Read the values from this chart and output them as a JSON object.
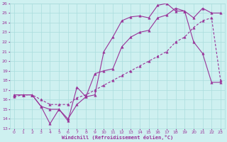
{
  "xlabel": "Windchill (Refroidissement éolien,°C)",
  "xlim": [
    -0.5,
    23.5
  ],
  "ylim": [
    13,
    26
  ],
  "xticks": [
    0,
    1,
    2,
    3,
    4,
    5,
    6,
    7,
    8,
    9,
    10,
    11,
    12,
    13,
    14,
    15,
    16,
    17,
    18,
    19,
    20,
    21,
    22,
    23
  ],
  "yticks": [
    13,
    14,
    15,
    16,
    17,
    18,
    19,
    20,
    21,
    22,
    23,
    24,
    25,
    26
  ],
  "bg_color": "#cef0f0",
  "grid_color": "#aadddd",
  "line_color": "#993399",
  "line1_x": [
    0,
    1,
    2,
    3,
    4,
    5,
    6,
    7,
    8,
    9,
    10,
    11,
    12,
    13,
    14,
    15,
    16,
    17,
    18,
    19,
    20,
    21,
    22,
    23
  ],
  "line1_y": [
    16.5,
    16.5,
    16.5,
    15.3,
    13.5,
    15.0,
    13.8,
    17.3,
    16.3,
    16.5,
    21.0,
    22.5,
    24.2,
    24.6,
    24.7,
    24.5,
    25.8,
    26.0,
    25.2,
    25.2,
    22.0,
    20.8,
    17.8,
    17.8
  ],
  "line2_x": [
    0,
    1,
    2,
    3,
    4,
    5,
    6,
    7,
    8,
    9,
    10,
    11,
    12,
    13,
    14,
    15,
    16,
    17,
    18,
    19,
    20,
    21,
    22,
    23
  ],
  "line2_y": [
    16.5,
    16.5,
    16.5,
    15.3,
    15.0,
    15.0,
    14.0,
    15.5,
    16.3,
    18.7,
    19.0,
    19.2,
    21.5,
    22.5,
    23.0,
    23.2,
    24.5,
    24.8,
    25.5,
    25.2,
    24.5,
    25.5,
    25.0,
    25.0
  ],
  "line3_x": [
    0,
    1,
    2,
    3,
    4,
    5,
    6,
    7,
    8,
    9,
    10,
    11,
    12,
    13,
    14,
    15,
    16,
    17,
    18,
    19,
    20,
    21,
    22,
    23
  ],
  "line3_y": [
    16.3,
    16.5,
    16.5,
    16.0,
    15.5,
    15.5,
    15.5,
    16.2,
    16.5,
    17.0,
    17.5,
    18.0,
    18.5,
    19.0,
    19.5,
    20.0,
    20.5,
    21.0,
    22.0,
    22.5,
    23.5,
    24.2,
    24.5,
    18.0
  ]
}
